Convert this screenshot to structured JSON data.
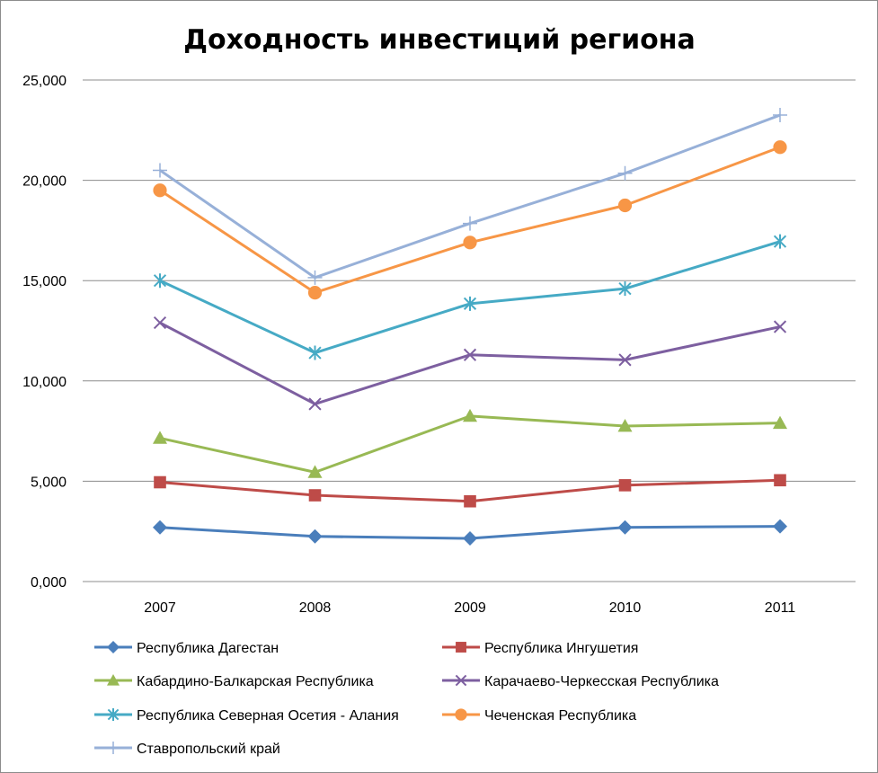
{
  "chart_data": {
    "type": "line",
    "title": "Доходность инвестиций региона",
    "xlabel": "",
    "ylabel": "",
    "x": [
      "2007",
      "2008",
      "2009",
      "2010",
      "2011"
    ],
    "ylim": [
      0,
      25
    ],
    "yticks": [
      "0,000",
      "5,000",
      "10,000",
      "15,000",
      "20,000",
      "25,000"
    ],
    "grid": "horizontal",
    "legend_position": "bottom",
    "series": [
      {
        "name": "Республика Дагестан",
        "color": "#4A7EBB",
        "marker": "diamond",
        "values": [
          2.7,
          2.25,
          2.15,
          2.7,
          2.75
        ]
      },
      {
        "name": "Республика Ингушетия",
        "color": "#BE4B48",
        "marker": "square",
        "values": [
          4.95,
          4.3,
          4.0,
          4.8,
          5.05
        ]
      },
      {
        "name": "Кабардино-Балкарская Республика",
        "color": "#98B954",
        "marker": "triangle",
        "values": [
          7.15,
          5.45,
          8.25,
          7.75,
          7.9
        ]
      },
      {
        "name": "Карачаево-Черкесская Республика",
        "color": "#7D5FA0",
        "marker": "x",
        "values": [
          12.9,
          8.85,
          11.3,
          11.05,
          12.7
        ]
      },
      {
        "name": "Республика Северная Осетия - Алания",
        "color": "#46AAC5",
        "marker": "asterisk",
        "values": [
          15.0,
          11.4,
          13.85,
          14.6,
          16.95
        ]
      },
      {
        "name": "Чеченская Республика",
        "color": "#F79646",
        "marker": "circle",
        "values": [
          19.5,
          14.4,
          16.9,
          18.75,
          21.65
        ]
      },
      {
        "name": "Ставропольский край",
        "color": "#97B0D8",
        "marker": "plus",
        "values": [
          20.5,
          15.15,
          17.85,
          20.35,
          23.25
        ]
      }
    ]
  }
}
